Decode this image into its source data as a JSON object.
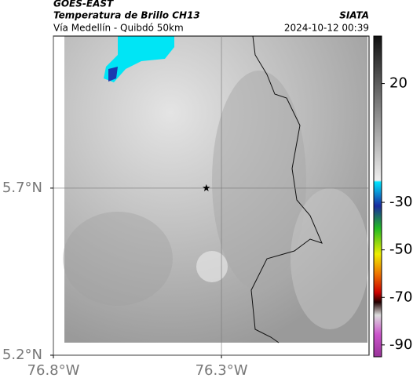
{
  "header": {
    "satellite": "GOES-EAST",
    "product": "Temperatura de Brillo CH13",
    "region": "Vía Medellín - Quibdó 50km",
    "source": "SIATA",
    "datetime": "2024-10-12 00:39"
  },
  "map": {
    "lon_range": [
      -76.8,
      -75.861
    ],
    "lat_range": [
      5.2,
      6.155
    ],
    "lon_ticks": [
      {
        "value": -76.8,
        "label": "76.8°W"
      },
      {
        "value": -76.3,
        "label": "76.3°W"
      }
    ],
    "lat_ticks": [
      {
        "value": 5.7,
        "label": "5.7°N"
      },
      {
        "value": 5.2,
        "label": "5.2°N"
      }
    ],
    "marker": {
      "lon": -76.345,
      "lat": 5.7
    }
  },
  "colorbar": {
    "range": [
      40,
      -95
    ],
    "ticks": [
      20,
      -30,
      -50,
      -70,
      -90
    ]
  }
}
